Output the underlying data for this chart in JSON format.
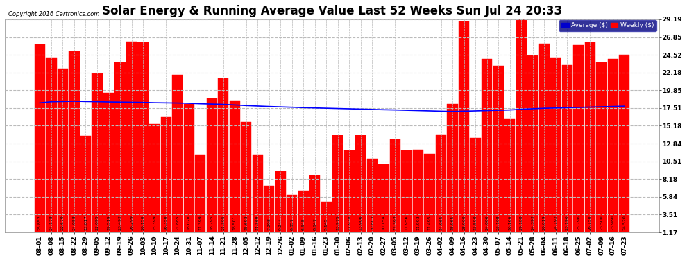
{
  "title": "Solar Energy & Running Average Value Last 52 Weeks Sun Jul 24 20:33",
  "copyright": "Copyright 2016 Cartronics.com",
  "background_color": "#ffffff",
  "plot_bg": "#e8e8e8",
  "bar_color": "#ff0000",
  "line_color": "#0000ff",
  "yticks": [
    1.17,
    3.51,
    5.84,
    8.18,
    10.51,
    12.84,
    15.18,
    17.51,
    19.85,
    22.18,
    24.52,
    26.85,
    29.19
  ],
  "categories": [
    "08-01",
    "08-08",
    "08-15",
    "08-22",
    "08-29",
    "09-05",
    "09-12",
    "09-19",
    "09-26",
    "10-03",
    "10-10",
    "10-17",
    "10-24",
    "10-31",
    "11-07",
    "11-14",
    "11-21",
    "11-28",
    "12-05",
    "12-12",
    "12-19",
    "12-26",
    "01-02",
    "01-09",
    "01-16",
    "01-23",
    "01-30",
    "02-06",
    "02-13",
    "02-20",
    "02-27",
    "03-05",
    "03-12",
    "03-19",
    "03-26",
    "04-02",
    "04-09",
    "04-16",
    "04-23",
    "04-30",
    "05-07",
    "05-14",
    "05-21",
    "05-28",
    "06-04",
    "06-11",
    "06-18",
    "06-25",
    "07-02",
    "07-09",
    "07-16",
    "07-23"
  ],
  "weekly_values": [
    25.852,
    24.178,
    22.679,
    24.958,
    13.817,
    22.095,
    19.519,
    23.492,
    26.299,
    26.15,
    15.399,
    16.35,
    21.885,
    18.02,
    11.399,
    18.795,
    21.395,
    18.501,
    15.693,
    11.369,
    7.298,
    9.244,
    6.057,
    6.648,
    8.647,
    5.145,
    13.975,
    11.938,
    13.906,
    10.803,
    10.154,
    13.392,
    11.956,
    11.993,
    11.495,
    14.065,
    18.065,
    28.9,
    13.59,
    24.006,
    23.108,
    16.166,
    29.188,
    24.392,
    26.019,
    24.192,
    23.196,
    25.796,
    26.15,
    23.5,
    23.98,
    24.52
  ],
  "avg_values": [
    18.2,
    18.35,
    18.38,
    18.42,
    18.38,
    18.36,
    18.32,
    18.3,
    18.28,
    18.26,
    18.22,
    18.2,
    18.18,
    18.14,
    18.08,
    18.04,
    18.0,
    17.92,
    17.84,
    17.78,
    17.72,
    17.67,
    17.62,
    17.57,
    17.53,
    17.49,
    17.45,
    17.41,
    17.37,
    17.33,
    17.29,
    17.26,
    17.22,
    17.18,
    17.14,
    17.1,
    17.07,
    17.1,
    17.14,
    17.18,
    17.22,
    17.26,
    17.35,
    17.42,
    17.48,
    17.52,
    17.56,
    17.6,
    17.64,
    17.68,
    17.72,
    17.76
  ],
  "legend_avg_color": "#0000cd",
  "legend_avg_label": "Average ($)",
  "legend_weekly_color": "#ff0000",
  "legend_weekly_label": "Weekly ($)",
  "legend_bg": "#000080",
  "ylim_min": 1.17,
  "ylim_max": 29.19,
  "title_fontsize": 12,
  "tick_fontsize": 6.5,
  "label_fontsize": 4.5,
  "grid_color": "#bbbbbb",
  "grid_style": "--"
}
